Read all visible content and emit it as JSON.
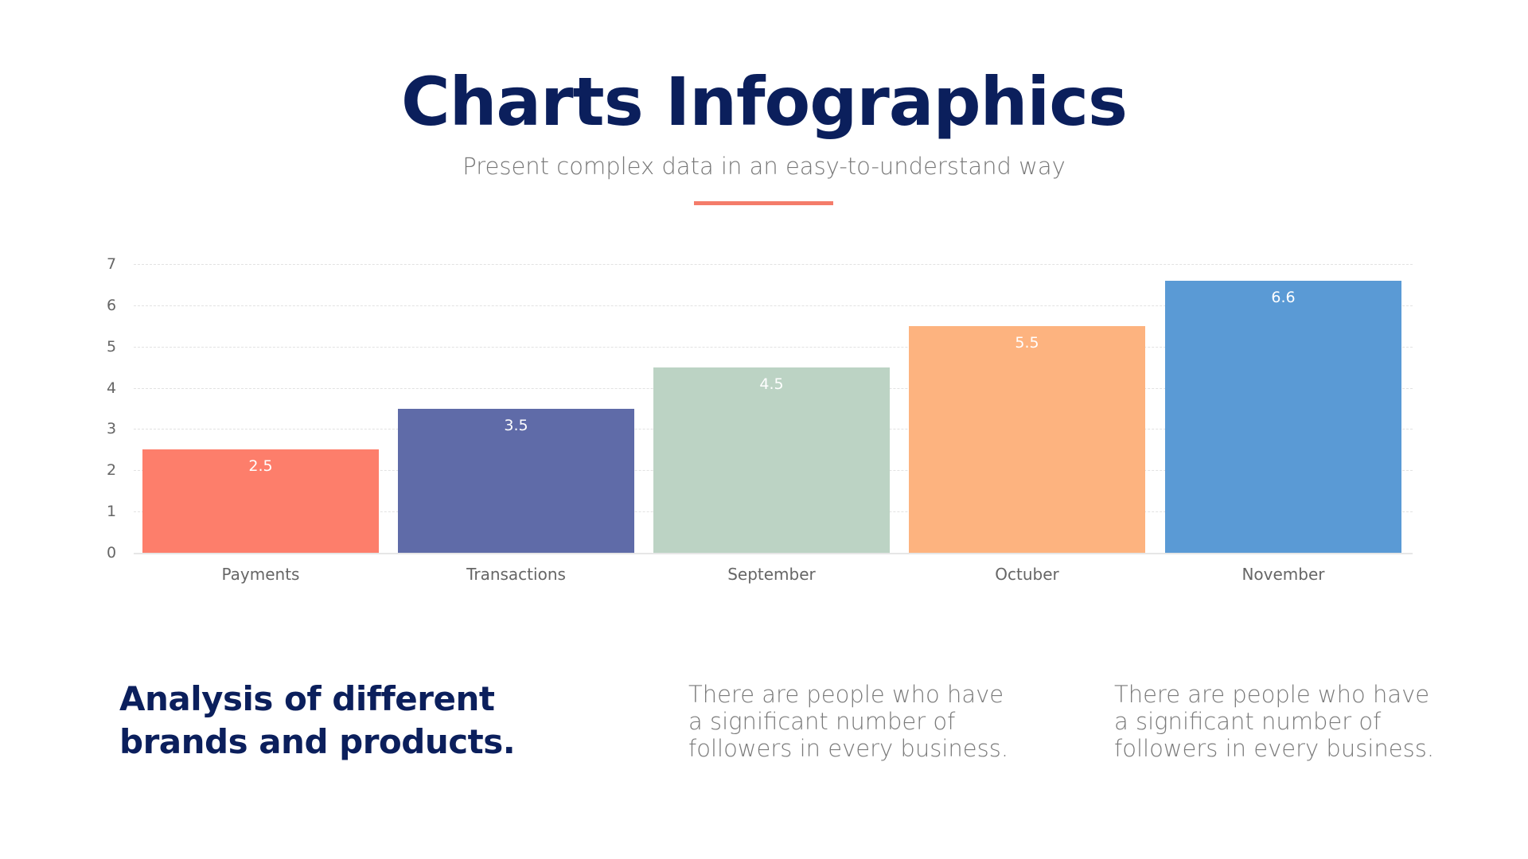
{
  "header": {
    "title": "Charts Infographics",
    "subtitle": "Present complex data in an easy-to-understand way",
    "accent_color": "#f47c6a"
  },
  "chart_data": {
    "type": "bar",
    "title": "",
    "xlabel": "",
    "ylabel": "",
    "ylim": [
      0,
      7
    ],
    "yticks": [
      "0",
      "1",
      "2",
      "3",
      "4",
      "5",
      "6",
      "7"
    ],
    "grid": true,
    "legend": null,
    "categories": [
      "Payments",
      "Transactions",
      "September",
      "Octuber",
      "November"
    ],
    "values": [
      2.5,
      3.5,
      4.5,
      5.5,
      6.6
    ],
    "value_labels": [
      "2.5",
      "3.5",
      "4.5",
      "5.5",
      "6.6"
    ],
    "colors": [
      "#fd7e6b",
      "#5f6ba8",
      "#bcd3c4",
      "#fdb37f",
      "#5a9ad5"
    ]
  },
  "footer": {
    "heading": "Analysis of different brands and products.",
    "columns": [
      {
        "text": "There are people who have a significant number of followers in every business."
      },
      {
        "text": "There are people who have a significant number of followers in every business."
      }
    ]
  }
}
